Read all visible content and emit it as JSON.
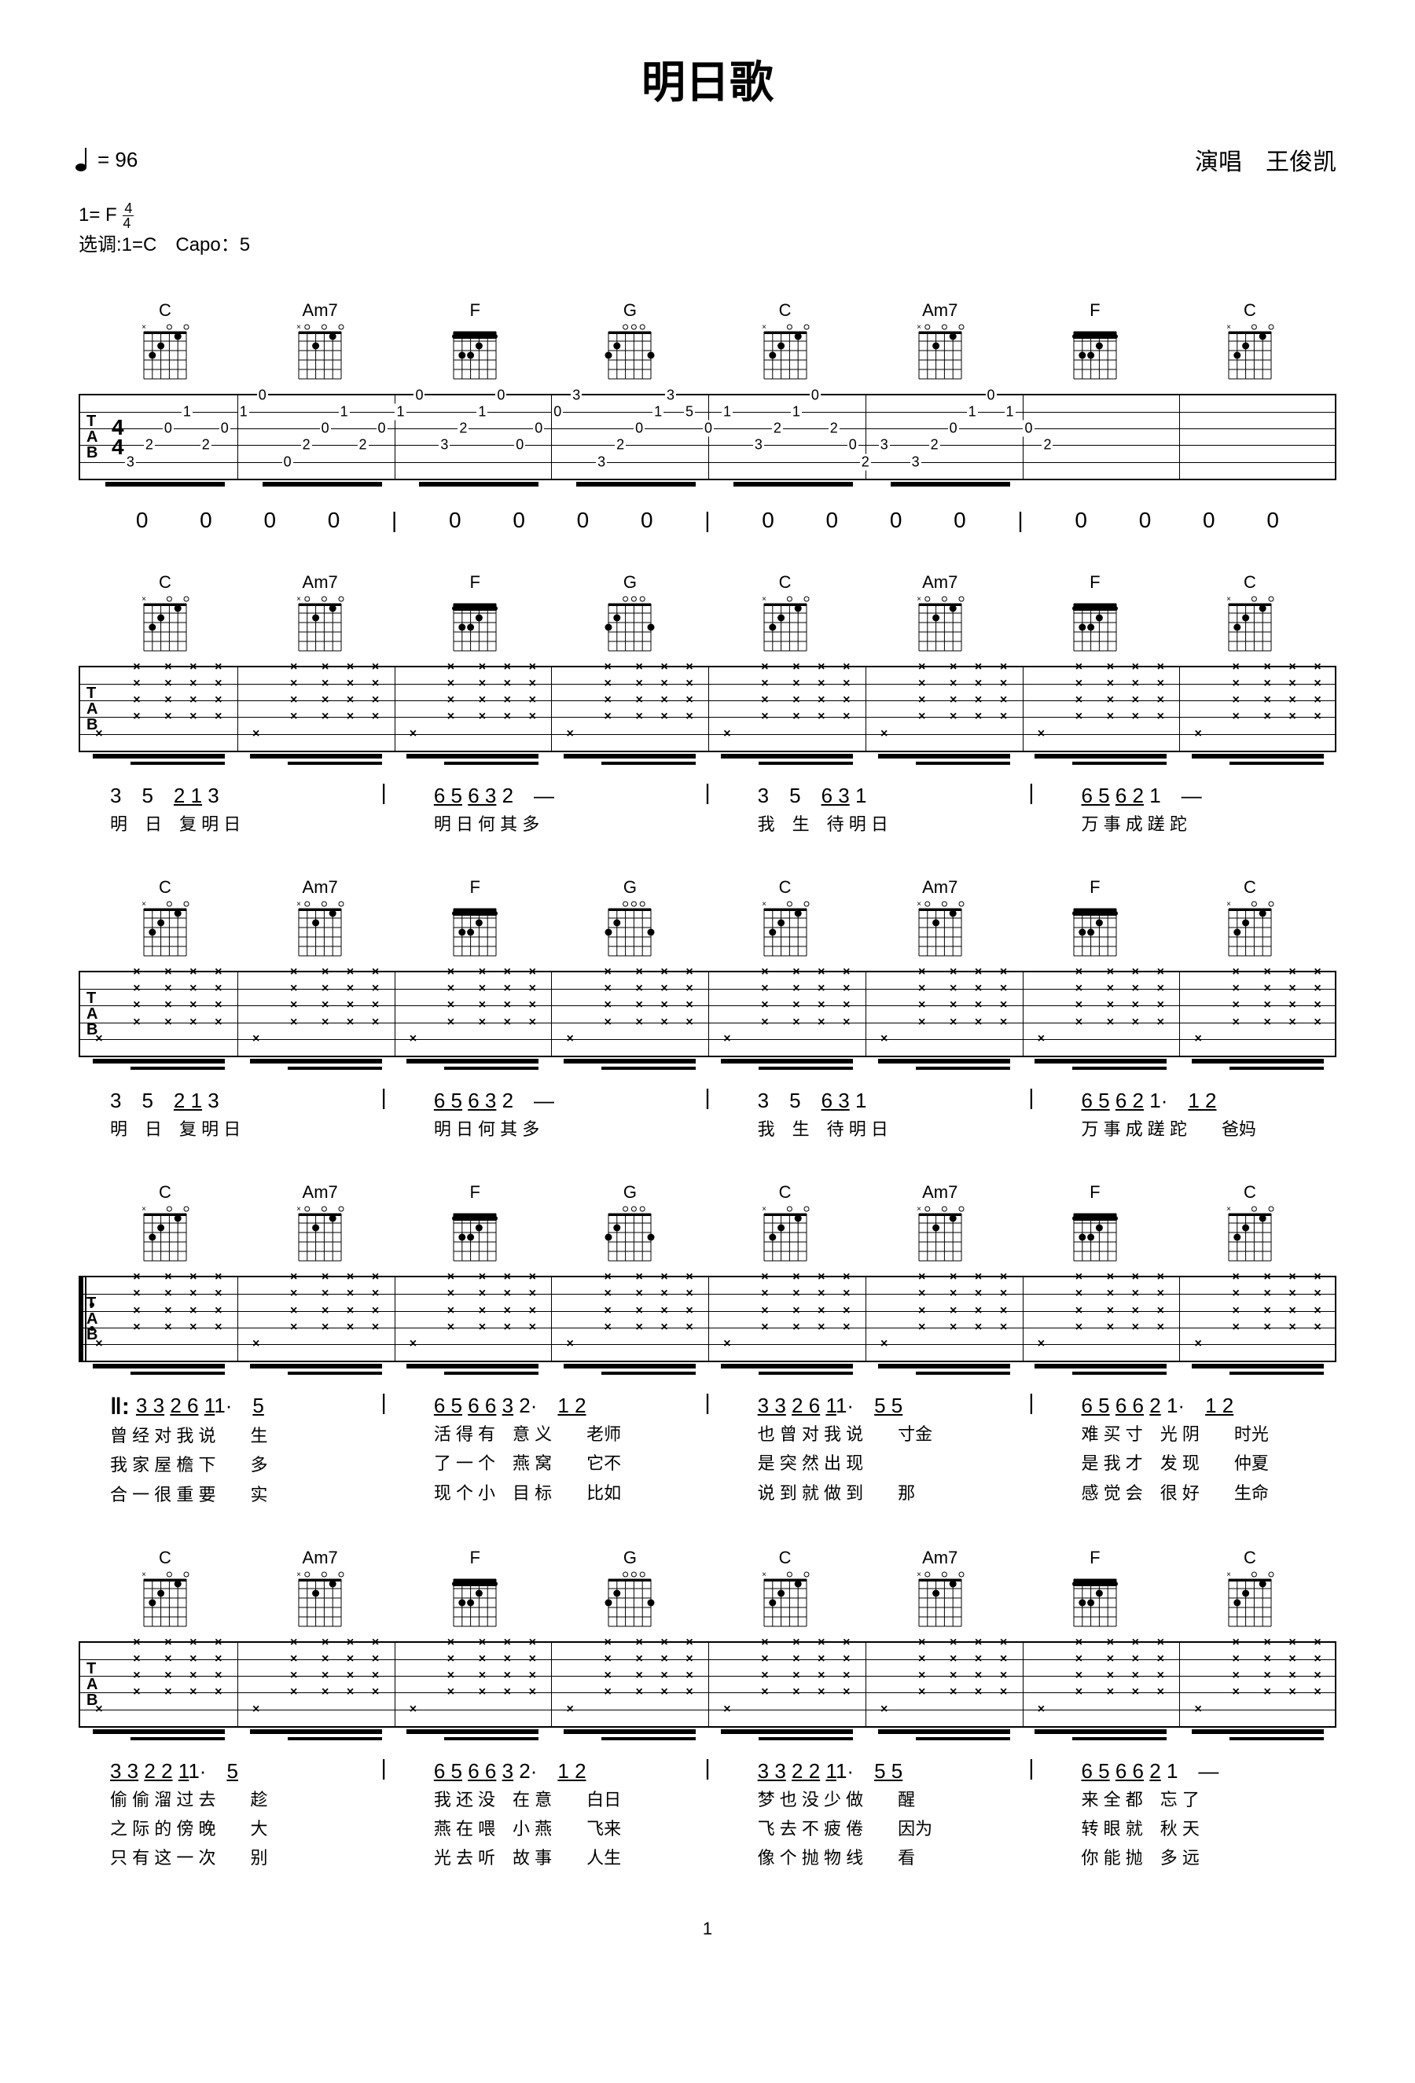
{
  "title": "明日歌",
  "tempo_text": "= 96",
  "performer_label": "演唱",
  "performer_name": "王俊凯",
  "key_line": "1= F",
  "time_sig_top": "4",
  "time_sig_bot": "4",
  "tune_line": "选调:1=C　Capo：5",
  "chord_sequence": [
    "C",
    "Am7",
    "F",
    "G",
    "C",
    "Am7",
    "F",
    "C"
  ],
  "chord_diagrams": {
    "C": {
      "frets": [
        null,
        3,
        2,
        0,
        1,
        0
      ],
      "barre": null
    },
    "Am7": {
      "frets": [
        null,
        0,
        2,
        0,
        1,
        0
      ],
      "barre": null
    },
    "F": {
      "frets": [
        1,
        3,
        3,
        2,
        1,
        1
      ],
      "barre": 1
    },
    "G": {
      "frets": [
        3,
        2,
        0,
        0,
        0,
        3
      ],
      "barre": null
    }
  },
  "system1_tab": [
    {
      "notes": [
        {
          "s": 5,
          "f": "3",
          "p": 8
        },
        {
          "s": 4,
          "f": "2",
          "p": 20
        },
        {
          "s": 3,
          "f": "0",
          "p": 32
        },
        {
          "s": 2,
          "f": "1",
          "p": 44
        },
        {
          "s": 4,
          "f": "2",
          "p": 56
        },
        {
          "s": 3,
          "f": "0",
          "p": 68
        },
        {
          "s": 2,
          "f": "1",
          "p": 80
        },
        {
          "s": 1,
          "f": "0",
          "p": 92
        }
      ]
    },
    {
      "notes": [
        {
          "s": 5,
          "f": "0",
          "p": 8
        },
        {
          "s": 4,
          "f": "2",
          "p": 20
        },
        {
          "s": 3,
          "f": "0",
          "p": 32
        },
        {
          "s": 2,
          "f": "1",
          "p": 44
        },
        {
          "s": 4,
          "f": "2",
          "p": 56
        },
        {
          "s": 3,
          "f": "0",
          "p": 68
        },
        {
          "s": 2,
          "f": "1",
          "p": 80
        },
        {
          "s": 1,
          "f": "0",
          "p": 92
        }
      ]
    },
    {
      "notes": [
        {
          "s": 4,
          "f": "3",
          "p": 8
        },
        {
          "s": 3,
          "f": "2",
          "p": 20
        },
        {
          "s": 2,
          "f": "1",
          "p": 32
        },
        {
          "s": 1,
          "f": "0",
          "p": 44
        },
        {
          "s": 4,
          "f": "0",
          "p": 56
        },
        {
          "s": 3,
          "f": "0",
          "p": 68
        },
        {
          "s": 2,
          "f": "0",
          "p": 80
        },
        {
          "s": 1,
          "f": "3",
          "p": 92
        }
      ]
    },
    {
      "notes": [
        {
          "s": 5,
          "f": "3",
          "p": 8
        },
        {
          "s": 4,
          "f": "2",
          "p": 20
        },
        {
          "s": 3,
          "f": "0",
          "p": 32
        },
        {
          "s": 2,
          "f": "1",
          "p": 44
        },
        {
          "s": 1,
          "f": "3",
          "p": 52
        },
        {
          "s": 2,
          "f": "5",
          "p": 64
        },
        {
          "s": 3,
          "f": "0",
          "p": 76
        },
        {
          "s": 2,
          "f": "1",
          "p": 88
        }
      ]
    },
    {
      "notes": [
        {
          "s": 4,
          "f": "3",
          "p": 8
        },
        {
          "s": 3,
          "f": "2",
          "p": 20
        },
        {
          "s": 2,
          "f": "1",
          "p": 32
        },
        {
          "s": 1,
          "f": "0",
          "p": 44
        },
        {
          "s": 3,
          "f": "2",
          "p": 56
        },
        {
          "s": 4,
          "f": "0",
          "p": 68
        },
        {
          "s": 5,
          "f": "2",
          "p": 76
        },
        {
          "s": 4,
          "f": "3",
          "p": 88
        }
      ]
    },
    {
      "notes": [
        {
          "s": 5,
          "f": "3",
          "p": 8
        },
        {
          "s": 4,
          "f": "2",
          "p": 20
        },
        {
          "s": 3,
          "f": "0",
          "p": 32
        },
        {
          "s": 2,
          "f": "1",
          "p": 44
        },
        {
          "s": 1,
          "f": "0",
          "p": 56
        },
        {
          "s": 2,
          "f": "1",
          "p": 68
        },
        {
          "s": 3,
          "f": "0",
          "p": 80
        },
        {
          "s": 4,
          "f": "2",
          "p": 92
        }
      ]
    }
  ],
  "zeros_row": [
    "0",
    "0",
    "0",
    "0",
    "|",
    "0",
    "0",
    "0",
    "0",
    "|",
    "0",
    "0",
    "0",
    "0",
    "|",
    "0",
    "0",
    "0",
    "0"
  ],
  "strum_systems_count": 4,
  "notation_rows": [
    {
      "nums": [
        "3　5　<u>2 1</u> 3",
        "<u>6 5</u> <u>6 3</u> 2　—",
        "3　5　<u>6 3</u> 1",
        "<u>6 5</u> <u>6 2</u> 1　—"
      ],
      "lyrics": [
        [
          "明　日　复 明 日",
          "明 日 何 其 多",
          "我　生　待 明 日",
          "万 事 成 蹉 跎"
        ]
      ]
    },
    {
      "nums": [
        "3　5　<u>2 1</u> 3",
        "<u>6 5</u> <u>6 3</u> 2　—",
        "3　5　<u>6 3</u> 1",
        "<u>6 5</u> <u>6 2</u> 1·　<u>1 2</u>"
      ],
      "lyrics": [
        [
          "明　日　复 明 日",
          "明 日 何 其 多",
          "我　生　待 明 日",
          "万 事 成 蹉 跎　　爸妈"
        ]
      ]
    },
    {
      "repeat": true,
      "nums": [
        "<u>3 3</u> <u>2 6</u> <u>1</u>1·　<u>5</u>",
        "<u>6 5</u> <u>6 6</u> <u>3</u> 2·　<u>1 2</u>",
        "<u>3 3</u> <u>2 6</u> <u>1</u>1·　<u>5 5</u>",
        "<u>6 5</u> <u>6 6</u> <u>2</u> 1·　<u>1 2</u>"
      ],
      "lyrics": [
        [
          "曾 经 对 我  说　　生",
          "活 得 有　意  义　　老师",
          "也 曾 对 我  说　　寸金",
          "难 买 寸　光  阴　　时光"
        ],
        [
          "我 家 屋 檐  下　　多",
          "了 一 个　燕  窝　　它不",
          "是 突 然 出  现　　　",
          "是 我 才　发  现　　仲夏"
        ],
        [
          "合 一 很 重  要　　实",
          "现 个 小　目  标　　比如",
          "说 到 就 做  到　　那",
          "感 觉 会　很  好　　生命"
        ]
      ]
    },
    {
      "nums": [
        "<u>3 3</u> <u>2 2</u> <u>1</u>1·　<u>5</u>",
        "<u>6 5</u> <u>6 6</u> <u>3</u> 2·　<u>1 2</u>",
        "<u>3 3</u> <u>2 2</u> <u>1</u>1·　<u>5 5</u>",
        "<u>6 5</u> <u>6 6</u> <u>2</u> 1　—"
      ],
      "lyrics": [
        [
          "偷 偷 溜 过  去　　趁",
          "我 还 没　在  意　　白日",
          "梦 也 没 少  做　　醒",
          "来 全 都　忘  了"
        ],
        [
          "之 际 的 傍  晚　　大",
          "燕 在 喂　小  燕　　飞来",
          "飞 去 不 疲  倦　　因为",
          "转 眼 就　秋  天"
        ],
        [
          "只 有 这 一  次　　别",
          "光 去 听　故  事　　人生",
          "像 个 抛 物  线　　看",
          "你 能 抛　多  远"
        ]
      ]
    }
  ],
  "page_number": "1",
  "colors": {
    "bg": "#ffffff",
    "fg": "#000000"
  }
}
